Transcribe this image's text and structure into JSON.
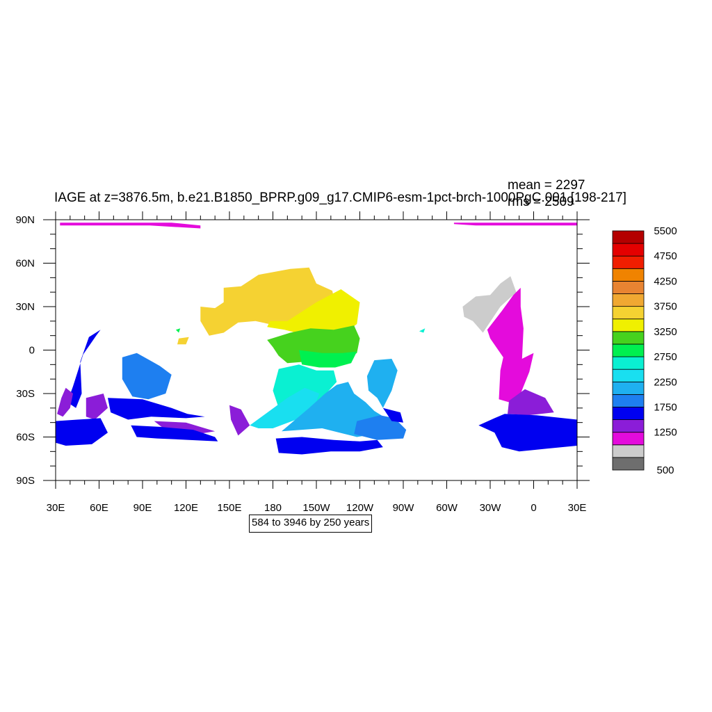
{
  "title": "IAGE at z=3876.5m, b.e21.B1850_BPRP.g09_g17.CMIP6-esm-1pct-brch-1000PgC.001 [198-217]",
  "stats": {
    "mean": "mean = 2297",
    "rms": "rms = 2509"
  },
  "info": "584 to 3946 by 250 years",
  "lat_ticks": [
    "90N",
    "60N",
    "30N",
    "0",
    "30S",
    "60S",
    "90S"
  ],
  "lon_ticks": [
    "30E",
    "60E",
    "90E",
    "120E",
    "150E",
    "180",
    "150W",
    "120W",
    "90W",
    "60W",
    "30W",
    "0",
    "30E"
  ],
  "colorbar": {
    "colors": [
      "#6e6e6e",
      "#cccccc",
      "#e40bdc",
      "#8b1dd8",
      "#0000f0",
      "#1e7ff0",
      "#1fb0f0",
      "#19dff0",
      "#0af0d2",
      "#00f050",
      "#46d21e",
      "#f0f000",
      "#f5d232",
      "#f0a832",
      "#e88432",
      "#f08300",
      "#f01e00",
      "#e40000",
      "#b40000"
    ],
    "labels": [
      {
        "index": 0,
        "text": "500"
      },
      {
        "index": 3,
        "text": "1250"
      },
      {
        "index": 5,
        "text": "1750"
      },
      {
        "index": 7,
        "text": "2250"
      },
      {
        "index": 9,
        "text": "2750"
      },
      {
        "index": 11,
        "text": "3250"
      },
      {
        "index": 13,
        "text": "3750"
      },
      {
        "index": 15,
        "text": "4250"
      },
      {
        "index": 17,
        "text": "4750"
      },
      {
        "index": 19,
        "text": "5500"
      }
    ]
  },
  "map": {
    "lon_range": [
      30,
      390
    ],
    "lat_range": [
      -90,
      90
    ],
    "regions": [
      {
        "name": "arctic-strip-west",
        "color": "#e40bdc",
        "points": [
          [
            33,
            88
          ],
          [
            110,
            88
          ],
          [
            130,
            86
          ],
          [
            130,
            84
          ],
          [
            95,
            86
          ],
          [
            33,
            86
          ]
        ]
      },
      {
        "name": "arctic-strip-east",
        "color": "#e40bdc",
        "points": [
          [
            305,
            88
          ],
          [
            390,
            88
          ],
          [
            390,
            86
          ],
          [
            320,
            86
          ],
          [
            305,
            87
          ]
        ]
      },
      {
        "name": "north-atlantic-grey",
        "color": "#cccccc",
        "points": [
          [
            311,
            30
          ],
          [
            320,
            37
          ],
          [
            330,
            38
          ],
          [
            337,
            46
          ],
          [
            344,
            51
          ],
          [
            348,
            40
          ],
          [
            337,
            30
          ],
          [
            329,
            18
          ],
          [
            325,
            12
          ],
          [
            318,
            20
          ],
          [
            312,
            23
          ]
        ]
      },
      {
        "name": "atlantic-magenta",
        "color": "#e40bdc",
        "points": [
          [
            328,
            14
          ],
          [
            338,
            27
          ],
          [
            346,
            38
          ],
          [
            351,
            43
          ],
          [
            351,
            30
          ],
          [
            353,
            15
          ],
          [
            352,
            -6
          ],
          [
            360,
            -2
          ],
          [
            357,
            -15
          ],
          [
            351,
            -30
          ],
          [
            343,
            -36
          ],
          [
            336,
            -34
          ],
          [
            337,
            -14
          ],
          [
            339,
            -5
          ],
          [
            330,
            8
          ]
        ]
      },
      {
        "name": "south-atlantic-purple",
        "color": "#8b1dd8",
        "points": [
          [
            343,
            -35
          ],
          [
            354,
            -27
          ],
          [
            368,
            -33
          ],
          [
            374,
            -43
          ],
          [
            356,
            -45
          ],
          [
            342,
            -44
          ]
        ]
      },
      {
        "name": "southern-blue-east",
        "color": "#0000f0",
        "points": [
          [
            340,
            -44
          ],
          [
            362,
            -45
          ],
          [
            390,
            -48
          ],
          [
            390,
            -66
          ],
          [
            369,
            -68
          ],
          [
            350,
            -70
          ],
          [
            338,
            -67
          ],
          [
            333,
            -57
          ],
          [
            322,
            -52
          ],
          [
            333,
            -47
          ]
        ]
      },
      {
        "name": "indian-west-blue",
        "color": "#0000f0",
        "points": [
          [
            49,
            -3
          ],
          [
            58,
            10
          ],
          [
            61,
            14
          ],
          [
            53,
            9
          ],
          [
            47,
            -8
          ],
          [
            48,
            -30
          ],
          [
            44,
            -40
          ],
          [
            38,
            -36
          ],
          [
            42,
            -25
          ]
        ]
      },
      {
        "name": "mozambique-purple",
        "color": "#8b1dd8",
        "points": [
          [
            37,
            -26
          ],
          [
            42,
            -30
          ],
          [
            40,
            -40
          ],
          [
            35,
            -46
          ],
          [
            31,
            -44
          ],
          [
            34,
            -33
          ]
        ]
      },
      {
        "name": "madagascar-purple",
        "color": "#8b1dd8",
        "points": [
          [
            51,
            -33
          ],
          [
            63,
            -30
          ],
          [
            66,
            -40
          ],
          [
            57,
            -48
          ],
          [
            51,
            -46
          ]
        ]
      },
      {
        "name": "southern-blue-west",
        "color": "#0000f0",
        "points": [
          [
            30,
            -49
          ],
          [
            45,
            -48
          ],
          [
            61,
            -47
          ],
          [
            66,
            -57
          ],
          [
            55,
            -65
          ],
          [
            37,
            -66
          ],
          [
            30,
            -64
          ]
        ]
      },
      {
        "name": "central-indian-blue",
        "color": "#1e7ff0",
        "points": [
          [
            76,
            -5
          ],
          [
            86,
            -2
          ],
          [
            95,
            -7
          ],
          [
            102,
            -11
          ],
          [
            110,
            -17
          ],
          [
            106,
            -30
          ],
          [
            94,
            -34
          ],
          [
            83,
            -32
          ],
          [
            76,
            -20
          ]
        ]
      },
      {
        "name": "south-indian-blue",
        "color": "#0000f0",
        "points": [
          [
            66,
            -33
          ],
          [
            90,
            -34
          ],
          [
            110,
            -40
          ],
          [
            121,
            -44
          ],
          [
            133,
            -46
          ],
          [
            120,
            -47
          ],
          [
            96,
            -46
          ],
          [
            80,
            -48
          ],
          [
            68,
            -43
          ]
        ]
      },
      {
        "name": "indian-south-purple",
        "color": "#8b1dd8",
        "points": [
          [
            98,
            -49
          ],
          [
            120,
            -50
          ],
          [
            140,
            -56
          ],
          [
            122,
            -59
          ],
          [
            107,
            -56
          ]
        ]
      },
      {
        "name": "kerguelen-blue",
        "color": "#0000f0",
        "points": [
          [
            82,
            -52
          ],
          [
            102,
            -53
          ],
          [
            125,
            -55
          ],
          [
            140,
            -60
          ],
          [
            142,
            -63
          ],
          [
            122,
            -62
          ],
          [
            100,
            -61
          ],
          [
            86,
            -60
          ]
        ]
      },
      {
        "name": "tasman-purple",
        "color": "#8b1dd8",
        "points": [
          [
            150,
            -38
          ],
          [
            158,
            -41
          ],
          [
            164,
            -52
          ],
          [
            156,
            -59
          ],
          [
            151,
            -48
          ]
        ]
      },
      {
        "name": "north-pacific-orange",
        "color": "#f5d232",
        "points": [
          [
            130,
            30
          ],
          [
            140,
            29
          ],
          [
            146,
            33
          ],
          [
            146,
            43
          ],
          [
            158,
            44
          ],
          [
            170,
            52
          ],
          [
            192,
            56
          ],
          [
            205,
            57
          ],
          [
            210,
            46
          ],
          [
            221,
            41
          ],
          [
            224,
            28
          ],
          [
            210,
            23
          ],
          [
            196,
            18
          ],
          [
            182,
            17
          ],
          [
            168,
            20
          ],
          [
            156,
            19
          ],
          [
            146,
            12
          ],
          [
            136,
            10
          ],
          [
            130,
            20
          ]
        ]
      },
      {
        "name": "north-pacific-yellow",
        "color": "#f0f000",
        "points": [
          [
            178,
            20
          ],
          [
            190,
            20
          ],
          [
            210,
            33
          ],
          [
            227,
            42
          ],
          [
            240,
            33
          ],
          [
            238,
            18
          ],
          [
            230,
            12
          ],
          [
            213,
            9
          ],
          [
            200,
            11
          ],
          [
            188,
            14
          ],
          [
            176,
            16
          ]
        ]
      },
      {
        "name": "equatorial-green",
        "color": "#46d21e",
        "points": [
          [
            176,
            7
          ],
          [
            192,
            12
          ],
          [
            206,
            15
          ],
          [
            222,
            14
          ],
          [
            236,
            17
          ],
          [
            240,
            8
          ],
          [
            238,
            -2
          ],
          [
            228,
            -7
          ],
          [
            214,
            -5
          ],
          [
            202,
            -8
          ],
          [
            190,
            -9
          ],
          [
            184,
            -4
          ],
          [
            180,
            2
          ]
        ]
      },
      {
        "name": "peru-basin-green",
        "color": "#00f050",
        "points": [
          [
            198,
            0
          ],
          [
            214,
            -2
          ],
          [
            228,
            -2
          ],
          [
            238,
            -1
          ],
          [
            234,
            -9
          ],
          [
            223,
            -12
          ],
          [
            212,
            -12
          ],
          [
            200,
            -10
          ]
        ]
      },
      {
        "name": "central-pacific-cyan",
        "color": "#0af0d2",
        "points": [
          [
            184,
            -13
          ],
          [
            198,
            -10
          ],
          [
            210,
            -14
          ],
          [
            222,
            -14
          ],
          [
            224,
            -22
          ],
          [
            214,
            -33
          ],
          [
            204,
            -40
          ],
          [
            194,
            -42
          ],
          [
            184,
            -40
          ],
          [
            180,
            -28
          ]
        ]
      },
      {
        "name": "central-pacific-cyan-light",
        "color": "#19dff0",
        "points": [
          [
            190,
            -33
          ],
          [
            202,
            -26
          ],
          [
            212,
            -30
          ],
          [
            208,
            -41
          ],
          [
            196,
            -48
          ],
          [
            180,
            -54
          ],
          [
            170,
            -54
          ],
          [
            164,
            -52
          ]
        ]
      },
      {
        "name": "south-pacific-lightblue",
        "color": "#1fb0f0",
        "points": [
          [
            205,
            -40
          ],
          [
            216,
            -30
          ],
          [
            224,
            -24
          ],
          [
            232,
            -22
          ],
          [
            236,
            -30
          ],
          [
            244,
            -36
          ],
          [
            250,
            -42
          ],
          [
            258,
            -47
          ],
          [
            262,
            -52
          ],
          [
            250,
            -58
          ],
          [
            238,
            -60
          ],
          [
            226,
            -57
          ],
          [
            214,
            -54
          ],
          [
            200,
            -55
          ],
          [
            186,
            -56
          ]
        ]
      },
      {
        "name": "southeast-pacific-blue",
        "color": "#1e7ff0",
        "points": [
          [
            238,
            -49
          ],
          [
            254,
            -45
          ],
          [
            264,
            -47
          ],
          [
            272,
            -55
          ],
          [
            270,
            -61
          ],
          [
            252,
            -62
          ],
          [
            236,
            -58
          ]
        ]
      },
      {
        "name": "pacific-south-blue",
        "color": "#0000f0",
        "points": [
          [
            182,
            -61
          ],
          [
            200,
            -60
          ],
          [
            222,
            -62
          ],
          [
            240,
            -63
          ],
          [
            252,
            -62
          ],
          [
            256,
            -67
          ],
          [
            240,
            -70
          ],
          [
            220,
            -70
          ],
          [
            200,
            -72
          ],
          [
            184,
            -71
          ]
        ]
      },
      {
        "name": "chile-basin-blue",
        "color": "#1fb0f0",
        "points": [
          [
            250,
            -7
          ],
          [
            262,
            -6
          ],
          [
            266,
            -14
          ],
          [
            262,
            -28
          ],
          [
            256,
            -40
          ],
          [
            252,
            -33
          ],
          [
            246,
            -28
          ],
          [
            245,
            -18
          ]
        ]
      },
      {
        "name": "drake-blue",
        "color": "#0000f0",
        "points": [
          [
            256,
            -40
          ],
          [
            268,
            -43
          ],
          [
            270,
            -50
          ],
          [
            262,
            -49
          ]
        ]
      },
      {
        "name": "indonesia-orange-patch",
        "color": "#f5d232",
        "points": [
          [
            115,
            8
          ],
          [
            122,
            9
          ],
          [
            120,
            4
          ],
          [
            114,
            4
          ]
        ]
      },
      {
        "name": "east-indian-green-patch",
        "color": "#00f050",
        "points": [
          [
            113,
            14
          ],
          [
            116,
            15
          ],
          [
            115,
            12
          ]
        ]
      },
      {
        "name": "caribbean-cyan-patch",
        "color": "#0af0d2",
        "points": [
          [
            281,
            13
          ],
          [
            285,
            15
          ],
          [
            284,
            12
          ]
        ]
      }
    ]
  }
}
